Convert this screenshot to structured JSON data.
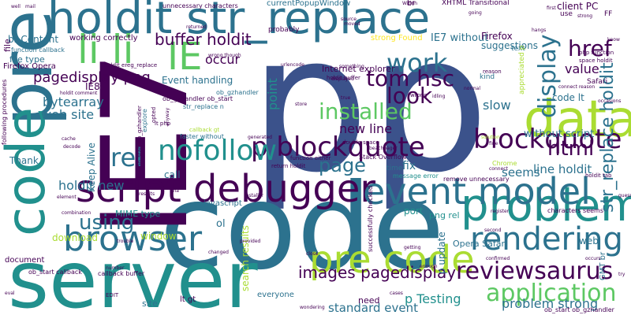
{
  "palette": {
    "dark_purple": "#440154",
    "indigo": "#3b528b",
    "blue": "#2c728e",
    "teal": "#21908d",
    "green": "#27ad81",
    "lime": "#5dc863",
    "yellow_green": "#aadc32",
    "yellow": "#fde725"
  },
  "words": [
    {
      "text": "p"
    },
    {
      "text": "p"
    },
    {
      "text": "code"
    },
    {
      "text": "server"
    },
    {
      "text": "IE7"
    },
    {
      "text": "holdit str_replace"
    },
    {
      "text": "pre"
    },
    {
      "text": "code"
    },
    {
      "text": "script debugger"
    },
    {
      "text": "data"
    },
    {
      "text": "problem"
    },
    {
      "text": "event model"
    },
    {
      "text": "pre code"
    },
    {
      "text": "browser"
    },
    {
      "text": "rendering"
    },
    {
      "text": "li li"
    },
    {
      "text": "p blockquote"
    },
    {
      "text": "blockquote p"
    },
    {
      "text": "nofollow"
    },
    {
      "text": "rel"
    },
    {
      "text": "application"
    },
    {
      "text": "reviewsaurus"
    },
    {
      "text": "work"
    },
    {
      "text": "IE"
    },
    {
      "text": "tom hsc"
    },
    {
      "text": "installed"
    },
    {
      "text": "display"
    },
    {
      "text": "look"
    },
    {
      "text": "href"
    },
    {
      "text": "html"
    },
    {
      "text": "using"
    },
    {
      "text": "page"
    },
    {
      "text": "str_replace holdit"
    },
    {
      "text": "pagedisplay png"
    },
    {
      "text": "buffer holdit"
    },
    {
      "text": "images pagedisplay"
    },
    {
      "text": "problem strong"
    },
    {
      "text": "p Testing"
    },
    {
      "text": "standard event"
    },
    {
      "text": "holdit new"
    },
    {
      "text": "bytearray"
    },
    {
      "text": "web site"
    },
    {
      "text": "value"
    },
    {
      "text": "new line"
    },
    {
      "text": "line holdit"
    },
    {
      "text": "slow"
    },
    {
      "text": "seems"
    },
    {
      "text": "point"
    },
    {
      "text": "occur"
    },
    {
      "text": "Event handling"
    },
    {
      "text": "without script"
    },
    {
      "text": "code lt"
    },
    {
      "text": "IE7 without"
    },
    {
      "text": "suggestions"
    },
    {
      "text": "Firefox"
    },
    {
      "text": "client PC"
    },
    {
      "text": "br Content"
    },
    {
      "text": "file type"
    },
    {
      "text": "working correctly"
    },
    {
      "text": "Internet explorer"
    },
    {
      "text": "strong Found"
    },
    {
      "text": "Thank"
    },
    {
      "text": "call"
    },
    {
      "text": "javascript"
    },
    {
      "text": "MIME type"
    },
    {
      "text": "window"
    },
    {
      "text": "download"
    },
    {
      "text": "ol"
    },
    {
      "text": "search results"
    },
    {
      "text": "port"
    },
    {
      "text": "fix"
    },
    {
      "text": "p update"
    },
    {
      "text": "png rel"
    },
    {
      "text": "Opera Safari"
    },
    {
      "text": "web"
    },
    {
      "text": "GMT br"
    },
    {
      "text": "Keep Alive"
    },
    {
      "text": "IE8"
    },
    {
      "text": "document"
    },
    {
      "text": "site"
    },
    {
      "text": "need"
    },
    {
      "text": "everyone"
    },
    {
      "text": "lt gt"
    },
    {
      "text": "Firefox Opera"
    },
    {
      "text": "file"
    },
    {
      "text": "function callback"
    },
    {
      "text": "currentPopupWindow"
    },
    {
      "text": "XHTML Transitional"
    },
    {
      "text": "unnecessary characters"
    },
    {
      "text": "Stack Overflow"
    },
    {
      "text": "ob_gzhandler"
    },
    {
      "text": "callback buffer"
    },
    {
      "text": "ob_start callback"
    },
    {
      "text": "holdit ereg_replace"
    },
    {
      "text": "characters seems"
    },
    {
      "text": "remove unnecessary"
    },
    {
      "text": "successfully checked"
    },
    {
      "text": "message error"
    },
    {
      "text": "double space"
    },
    {
      "text": "return holdit"
    },
    {
      "text": "function either"
    },
    {
      "text": "Chrome"
    },
    {
      "text": "Safari"
    },
    {
      "text": "kind"
    },
    {
      "text": "reason"
    },
    {
      "text": "text"
    },
    {
      "text": "use"
    },
    {
      "text": "br"
    },
    {
      "text": "FF"
    },
    {
      "text": "probably"
    },
    {
      "text": "urlencode"
    },
    {
      "text": "holdit buffer"
    },
    {
      "text": "wrong"
    },
    {
      "text": "time"
    },
    {
      "text": "faster without"
    },
    {
      "text": "callback gt"
    },
    {
      "text": "lt php"
    },
    {
      "text": "str_replace n"
    },
    {
      "text": "ob_gzhandler ob_start"
    },
    {
      "text": "php function"
    },
    {
      "text": "space holdit"
    },
    {
      "text": "appreciated p"
    },
    {
      "text": "holdit tab"
    },
    {
      "text": "provided"
    },
    {
      "text": "changed"
    },
    {
      "text": "close"
    },
    {
      "text": "getting"
    },
    {
      "text": "EDIT"
    },
    {
      "text": "wondering"
    },
    {
      "text": "confirmed"
    },
    {
      "text": "second"
    },
    {
      "text": "Within"
    },
    {
      "text": "source"
    },
    {
      "text": "strong"
    },
    {
      "text": "installer"
    },
    {
      "text": "generated"
    },
    {
      "text": "cache"
    },
    {
      "text": "decode"
    },
    {
      "text": "following procedures"
    },
    {
      "text": "ob_start ob_gzhandler"
    },
    {
      "text": "eval"
    },
    {
      "text": "well"
    },
    {
      "text": "going"
    },
    {
      "text": "first"
    },
    {
      "text": "hangs"
    },
    {
      "text": "something"
    },
    {
      "text": "connect"
    },
    {
      "text": "solution"
    },
    {
      "text": "register"
    },
    {
      "text": "store"
    },
    {
      "text": "beachpager"
    },
    {
      "text": "idling"
    },
    {
      "text": "normal"
    },
    {
      "text": "displayed"
    },
    {
      "text": "true"
    },
    {
      "text": "returned"
    },
    {
      "text": "opted"
    },
    {
      "text": "explore"
    },
    {
      "text": "element"
    },
    {
      "text": "combination"
    },
    {
      "text": "number"
    },
    {
      "text": "trouble"
    },
    {
      "text": "connect reason"
    },
    {
      "text": "occasions"
    },
    {
      "text": "guess"
    },
    {
      "text": "try"
    },
    {
      "text": "via"
    },
    {
      "text": "cases"
    },
    {
      "text": "moved"
    },
    {
      "text": "wrong though"
    },
    {
      "text": "anyway"
    },
    {
      "text": "enough"
    },
    {
      "text": "know"
    },
    {
      "text": "fine"
    },
    {
      "text": "results"
    },
    {
      "text": "holdit comment"
    },
    {
      "text": "occurs"
    },
    {
      "text": "mail"
    },
    {
      "text": "ob_start ob_gzhandler"
    }
  ]
}
